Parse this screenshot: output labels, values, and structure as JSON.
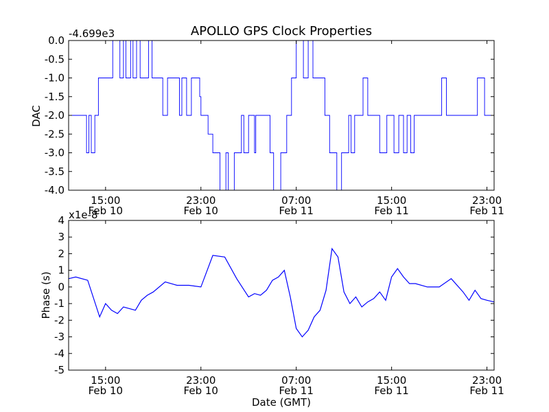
{
  "title": "APOLLO GPS Clock Properties",
  "colors": {
    "line": "#0000ff",
    "frame": "#000000",
    "background": "#ffffff"
  },
  "chart_data": [
    {
      "type": "line",
      "title": "APOLLO GPS Clock Properties",
      "ylabel": "DAC",
      "xlabel": "",
      "offset_label": "-4.699e3",
      "ylim": [
        -4.0,
        0.0
      ],
      "yticks": [
        "0.0",
        "-0.5",
        "-1.0",
        "-1.5",
        "-2.0",
        "-2.5",
        "-3.0",
        "-3.5",
        "-4.0"
      ],
      "xticks": [
        {
          "time": "15:00",
          "date": "Feb 10"
        },
        {
          "time": "23:00",
          "date": "Feb 10"
        },
        {
          "time": "07:00",
          "date": "Feb 11"
        },
        {
          "time": "15:00",
          "date": "Feb 11"
        },
        {
          "time": "23:00",
          "date": "Feb 11"
        }
      ],
      "x_hours_since_first_tick_range": [
        -3.1,
        32.6
      ],
      "series": [
        {
          "x": [
            -3.1,
            -1.8,
            -1.6,
            -1.4,
            -1.2,
            -0.9,
            -0.6,
            -0.4,
            0.0,
            0.6,
            1.2,
            1.5,
            1.7,
            2.1,
            2.3,
            2.6,
            2.9,
            3.3,
            3.6,
            3.9,
            4.4,
            4.8,
            5.2,
            5.6,
            6.2,
            6.4,
            6.8,
            7.2,
            7.4,
            7.9,
            8.0,
            8.2,
            8.6,
            9.0,
            9.2,
            9.6,
            10.1,
            10.3,
            10.8,
            11.0,
            11.4,
            11.6,
            12.0,
            12.5,
            12.6,
            13.0,
            13.5,
            13.8,
            14.1,
            14.7,
            15.2,
            15.6,
            16.0,
            16.6,
            17.0,
            17.4,
            17.9,
            18.4,
            18.8,
            19.4,
            19.8,
            20.4,
            20.6,
            20.9,
            21.2,
            21.6,
            22.0,
            22.4,
            22.6,
            23.0,
            23.6,
            24.2,
            24.6,
            25.0,
            25.3,
            25.6,
            25.9,
            26.2,
            26.5,
            26.9,
            27.4,
            27.9,
            28.2,
            28.6,
            29.0,
            29.3,
            29.6,
            30.2,
            30.6,
            30.8,
            31.2,
            31.8,
            32.3,
            32.6
          ],
          "y": [
            -2.0,
            -2.0,
            -3.0,
            -2.0,
            -3.0,
            -2.0,
            -1.0,
            -1.0,
            -1.0,
            0.0,
            -1.0,
            0.0,
            -1.0,
            0.0,
            -1.0,
            0.0,
            -1.0,
            -1.0,
            0.0,
            -1.0,
            -1.0,
            -2.0,
            -1.0,
            -1.0,
            -2.0,
            -1.0,
            -2.0,
            -1.0,
            -1.0,
            -1.5,
            -2.0,
            -2.0,
            -2.5,
            -3.0,
            -3.0,
            -4.0,
            -3.0,
            -4.0,
            -3.0,
            -3.0,
            -2.0,
            -3.0,
            -2.0,
            -3.0,
            -2.0,
            -2.0,
            -2.0,
            -3.0,
            -4.0,
            -3.0,
            -2.0,
            -1.0,
            0.0,
            -1.0,
            0.0,
            -1.0,
            -1.0,
            -2.0,
            -3.0,
            -4.0,
            -3.0,
            -2.0,
            -3.0,
            -2.0,
            -2.0,
            -1.0,
            -2.0,
            -2.0,
            -2.0,
            -3.0,
            -2.0,
            -3.0,
            -2.0,
            -3.0,
            -2.0,
            -3.0,
            -2.0,
            -2.0,
            -2.0,
            -2.0,
            -2.0,
            -2.0,
            -1.0,
            -2.0,
            -2.0,
            -2.0,
            -2.0,
            -2.0,
            -2.0,
            -2.0,
            -1.0,
            -2.0,
            -2.0,
            -2.0
          ]
        }
      ]
    },
    {
      "type": "line",
      "title": "",
      "ylabel": "Phase (s)",
      "xlabel": "Date (GMT)",
      "offset_label": "x1e-8",
      "ylim": [
        -5,
        4
      ],
      "yticks": [
        "4",
        "3",
        "2",
        "1",
        "0",
        "-1",
        "-2",
        "-3",
        "-4",
        "-5"
      ],
      "xticks": [
        {
          "time": "15:00",
          "date": "Feb 10"
        },
        {
          "time": "23:00",
          "date": "Feb 10"
        },
        {
          "time": "07:00",
          "date": "Feb 11"
        },
        {
          "time": "15:00",
          "date": "Feb 11"
        },
        {
          "time": "23:00",
          "date": "Feb 11"
        }
      ],
      "x_hours_since_first_tick_range": [
        -3.1,
        32.6
      ],
      "series": [
        {
          "x": [
            -3.1,
            -2.5,
            -1.5,
            -0.5,
            0.0,
            0.5,
            1.0,
            1.5,
            2.0,
            2.5,
            3.0,
            3.5,
            4.0,
            5.0,
            6.0,
            7.0,
            8.0,
            9.0,
            10.0,
            11.0,
            12.0,
            12.5,
            13.0,
            13.5,
            14.0,
            14.5,
            15.0,
            15.5,
            16.0,
            16.5,
            17.0,
            17.5,
            18.0,
            18.5,
            19.0,
            19.5,
            20.0,
            20.5,
            21.0,
            21.5,
            22.0,
            22.5,
            23.0,
            23.5,
            24.0,
            24.5,
            25.0,
            25.5,
            26.0,
            27.0,
            28.0,
            29.0,
            30.0,
            30.5,
            31.0,
            31.5,
            32.0,
            32.6
          ],
          "y": [
            0.5,
            0.6,
            0.4,
            -1.8,
            -1.0,
            -1.4,
            -1.6,
            -1.2,
            -1.3,
            -1.4,
            -0.8,
            -0.5,
            -0.3,
            0.3,
            0.1,
            0.1,
            0.0,
            1.9,
            1.8,
            0.5,
            -0.6,
            -0.4,
            -0.5,
            -0.2,
            0.4,
            0.6,
            1.0,
            -0.6,
            -2.5,
            -3.0,
            -2.6,
            -1.8,
            -1.4,
            -0.2,
            2.3,
            1.8,
            -0.3,
            -1.0,
            -0.6,
            -1.2,
            -0.9,
            -0.7,
            -0.3,
            -0.8,
            0.6,
            1.1,
            0.6,
            0.2,
            0.2,
            0.0,
            0.0,
            0.5,
            -0.3,
            -0.8,
            -0.2,
            -0.7,
            -0.8,
            -0.9
          ]
        }
      ]
    }
  ]
}
